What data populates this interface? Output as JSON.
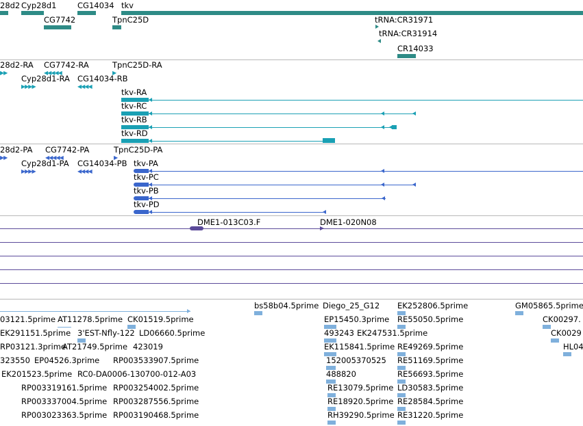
{
  "colors": {
    "gene": "#2e8b86",
    "transcript": "#1aa0b4",
    "protein": "#3a66cc",
    "clone": "#5b4a9a",
    "est": "#7fb0dc",
    "divider": "#b8b8b8"
  },
  "gene_track": {
    "labels": {
      "cyp28d2": "28d2",
      "cyp28d1": "Cyp28d1",
      "cg14034": "CG14034",
      "tkv": "tkv",
      "cg7742": "CG7742",
      "tpnc25d": "TpnC25D",
      "trna_cr31971": "tRNA:CR31971",
      "trna_cr31914": "tRNA:CR31914",
      "cr14033": "CR14033"
    }
  },
  "transcript_track": {
    "labels": {
      "cyp28d2_ra": "28d2-RA",
      "cg7742_ra": "CG7742-RA",
      "tpnc25d_ra": "TpnC25D-RA",
      "cyp28d1_ra": "Cyp28d1-RA",
      "cg14034_rb": "CG14034-RB",
      "tkv_ra": "tkv-RA",
      "tkv_rc": "tkv-RC",
      "tkv_rb": "tkv-RB",
      "tkv_rd": "tkv-RD"
    }
  },
  "protein_track": {
    "labels": {
      "cyp28d2_pa": "28d2-PA",
      "cg7742_pa": "CG7742-PA",
      "tpnc25d_pa": "TpnC25D-PA",
      "cyp28d1_pa": "Cyp28d1-PA",
      "cg14034_pb": "CG14034-PB",
      "tkv_pa": "tkv-PA",
      "tkv_pc": "tkv-PC",
      "tkv_pb": "tkv-PB",
      "tkv_pd": "tkv-PD"
    }
  },
  "clone_track": {
    "labels": {
      "dme1_013c03": "DME1-013C03.F",
      "dme1_020n08": "DME1-020N08"
    }
  },
  "est_track": {
    "labels": {
      "bs58b04": "bs58b04.5prime",
      "diego": "Diego_25_G12",
      "ek252806": "EK252806.5prime",
      "gm05865": "GM05865.5prime",
      "l_03121": "03121.5prime",
      "at11278": "AT11278.5prime",
      "ck01519": "CK01519.5prime",
      "ep15450": "EP15450.3prime",
      "re55050": "RE55050.5prime",
      "ck00297": "CK00297.",
      "ek291151": "EK291151.5prime",
      "est_nfly": "3'EST-Nfly-122",
      "ld06660": "LD06660.5prime",
      "n493243": "493243",
      "ek247531": "EK247531.5prime",
      "ck0029": "CK0029",
      "rp03121": "RP03121.3prime",
      "at21749": "AT21749.5prime",
      "n423019": "423019",
      "ek115841": "EK115841.5prime",
      "re49269": "RE49269.5prime",
      "hl04": "HL04",
      "n323550": "323550",
      "ep04526": "EP04526.3prime",
      "rp003533907": "RP003533907.5prime",
      "n152005370525": "152005370525",
      "re51169": "RE51169.5prime",
      "ek201523": "EK201523.5prime",
      "rc0_da": "RC0-DA0006-130700-012-A03",
      "n488820": "488820",
      "re56693": "RE56693.5prime",
      "rp003319161": "RP003319161.5prime",
      "rp003254002": "RP003254002.5prime",
      "re13079": "RE13079.5prime",
      "ld30583": "LD30583.5prime",
      "rp003337004": "RP003337004.5prime",
      "rp003287556": "RP003287556.5prime",
      "re18920": "RE18920.5prime",
      "re28584": "RE28584.5prime",
      "rp003023363": "RP003023363.5prime",
      "rp003190468": "RP003190468.5prime",
      "rh39290": "RH39290.5prime",
      "re31220": "RE31220.5prime"
    }
  }
}
